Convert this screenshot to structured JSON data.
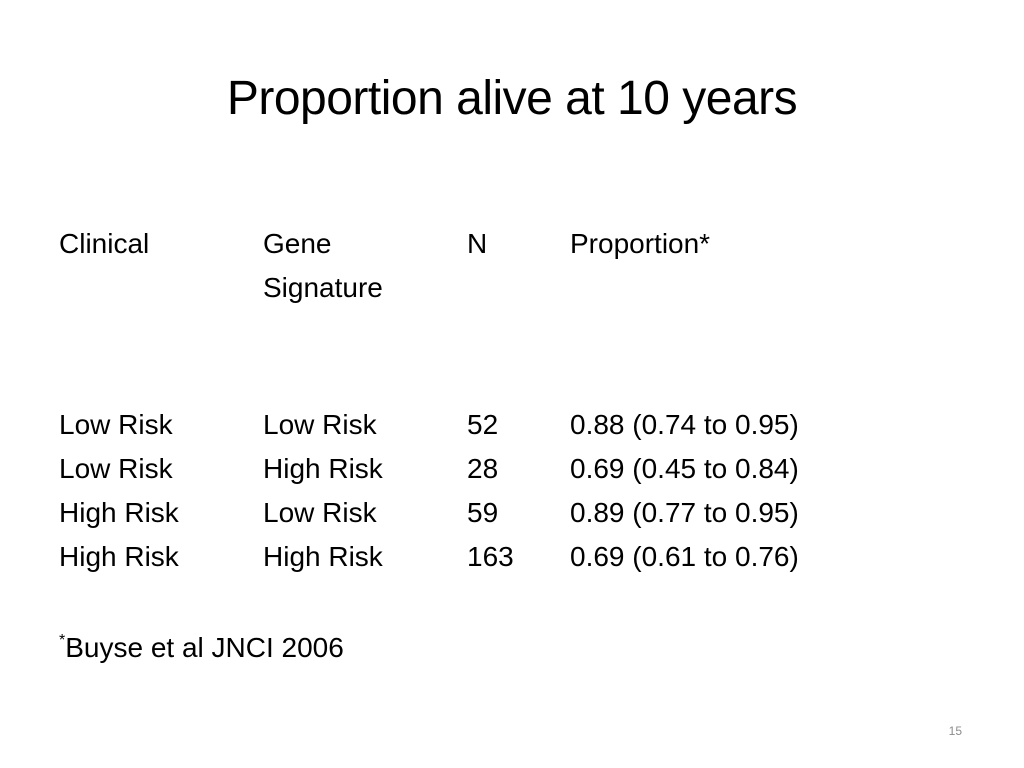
{
  "slide": {
    "title": "Proportion alive at 10 years",
    "columns": {
      "clinical": "Clinical",
      "gene_line1": "Gene",
      "gene_line2": "Signature",
      "n": "N",
      "proportion": "Proportion*"
    },
    "rows": [
      {
        "clinical": "Low Risk",
        "gene": "Low Risk",
        "n": "52",
        "proportion": "0.88 (0.74 to 0.95)"
      },
      {
        "clinical": "Low Risk",
        "gene": "High Risk",
        "n": "28",
        "proportion": "0.69 (0.45 to 0.84)"
      },
      {
        "clinical": "High Risk",
        "gene": "Low Risk",
        "n": "59",
        "proportion": "0.89 (0.77 to 0.95)"
      },
      {
        "clinical": "High Risk",
        "gene": "High Risk",
        "n": "163",
        "proportion": "0.69 (0.61 to 0.76)"
      }
    ],
    "footnote_marker": "*",
    "footnote_text": "Buyse et al JNCI 2006",
    "slide_number": "15"
  }
}
